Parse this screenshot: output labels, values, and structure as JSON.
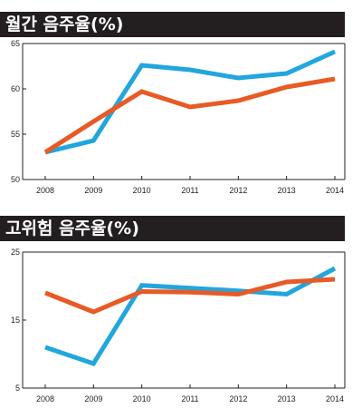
{
  "chart_data": [
    {
      "type": "line",
      "title": "월간 음주율(%)",
      "categories": [
        "2008",
        "2009",
        "2010",
        "2011",
        "2012",
        "2013",
        "2014"
      ],
      "y_ticks": [
        "50",
        "55",
        "60",
        "65"
      ],
      "ylim": [
        50,
        65
      ],
      "grid": false,
      "series": [
        {
          "color": "#21a6dd",
          "values": [
            53.0,
            54.3,
            62.6,
            62.1,
            61.2,
            61.7,
            64.1
          ]
        },
        {
          "color": "#e85a25",
          "values": [
            53.0,
            56.4,
            59.7,
            58.0,
            58.7,
            60.2,
            61.1
          ]
        }
      ]
    },
    {
      "type": "line",
      "title": "고위험 음주율(%)",
      "categories": [
        "2008",
        "2009",
        "2010",
        "2011",
        "2012",
        "2013",
        "2014"
      ],
      "y_ticks": [
        "5",
        "15",
        "25"
      ],
      "ylim": [
        5,
        25
      ],
      "grid": false,
      "series": [
        {
          "color": "#21a6dd",
          "values": [
            11.0,
            8.6,
            20.1,
            19.7,
            19.3,
            18.8,
            22.6
          ]
        },
        {
          "color": "#e85a25",
          "values": [
            19.0,
            16.2,
            19.2,
            19.1,
            18.8,
            20.6,
            21.0
          ]
        }
      ]
    }
  ]
}
